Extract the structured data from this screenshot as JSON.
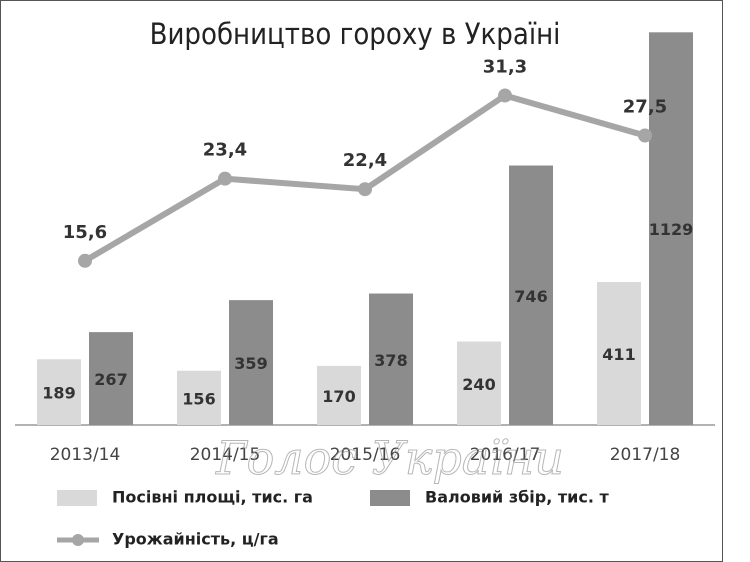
{
  "chart_data": {
    "type": "bar",
    "title": "Виробництво гороху в Україні",
    "watermark": "Голос України",
    "categories": [
      "2013/14",
      "2014/15",
      "2015/16",
      "2016/17",
      "2017/18"
    ],
    "series": [
      {
        "name": "Посівні площі, тис. га",
        "color": "#d9d9d9",
        "values": [
          189,
          156,
          170,
          240,
          411
        ]
      },
      {
        "name": "Валовий збір, тис. т",
        "color": "#8c8c8c",
        "values": [
          267,
          359,
          378,
          746,
          1129
        ]
      },
      {
        "name": "Урожайність, ц/га",
        "color": "#a6a6a6",
        "type": "line",
        "axis": "y2",
        "values": [
          15.6,
          23.4,
          22.4,
          31.3,
          27.5
        ],
        "value_labels": [
          "15,6",
          "23,4",
          "22,4",
          "31,3",
          "27,5"
        ]
      }
    ],
    "ylim": [
      0,
      1150
    ],
    "y2lim": [
      0,
      38
    ]
  }
}
